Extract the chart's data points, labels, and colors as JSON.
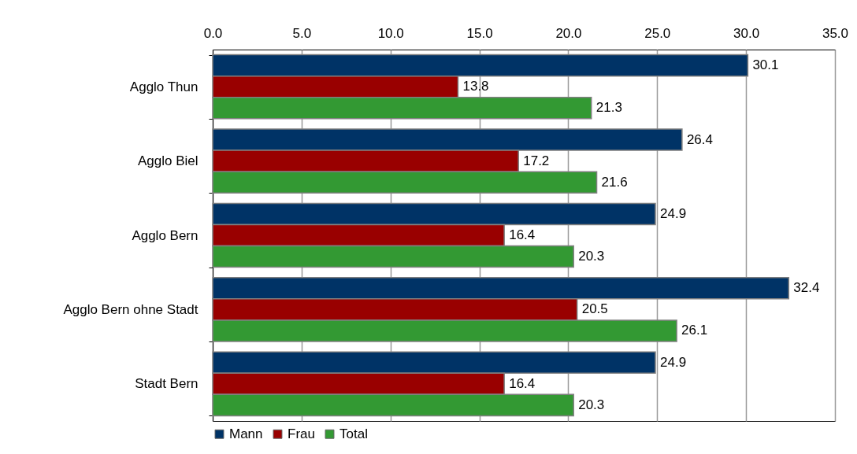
{
  "chart_data": {
    "type": "bar",
    "orientation": "horizontal",
    "categories": [
      "Agglo Thun",
      "Agglo Biel",
      "Agglo Bern",
      "Agglo Bern ohne Stadt",
      "Stadt Bern"
    ],
    "series": [
      {
        "name": "Mann",
        "color": "#003366",
        "values": [
          30.1,
          26.4,
          24.9,
          32.4,
          24.9
        ]
      },
      {
        "name": "Frau",
        "color": "#990000",
        "values": [
          13.8,
          17.2,
          16.4,
          20.5,
          16.4
        ]
      },
      {
        "name": "Total",
        "color": "#339933",
        "values": [
          21.3,
          21.6,
          20.3,
          26.1,
          20.3
        ]
      }
    ],
    "xlim": [
      0,
      35
    ],
    "xticks": [
      {
        "value": 0,
        "label": "0.0"
      },
      {
        "value": 5,
        "label": "5.0"
      },
      {
        "value": 10,
        "label": "10.0"
      },
      {
        "value": 15,
        "label": "15.0"
      },
      {
        "value": 20,
        "label": "20.0"
      },
      {
        "value": 25,
        "label": "25.0"
      },
      {
        "value": 30,
        "label": "30.0"
      },
      {
        "value": 35,
        "label": "35.0"
      }
    ],
    "grid": "x",
    "legend": "bottom",
    "data_labels": true
  }
}
